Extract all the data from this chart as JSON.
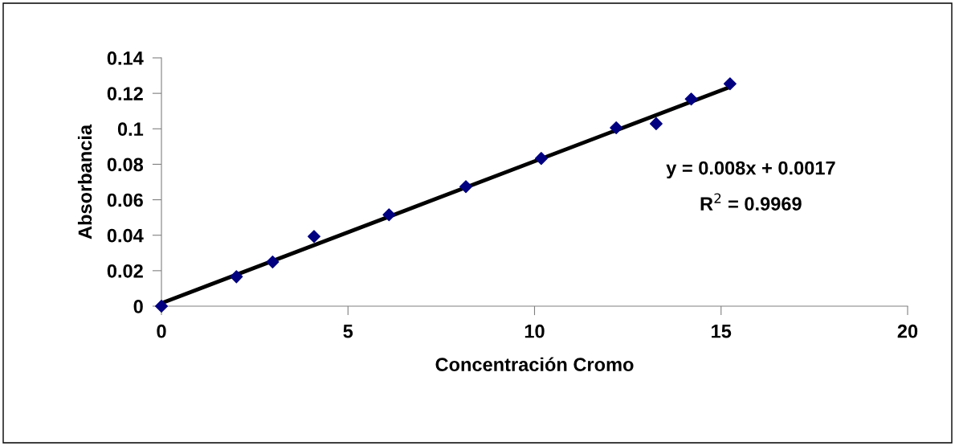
{
  "chart_data": {
    "type": "scatter",
    "xlabel": "Concentración Cromo",
    "ylabel": "Absorbancia",
    "x": [
      0,
      2.01,
      2.98,
      4.09,
      6.1,
      8.16,
      10.18,
      12.19,
      13.26,
      14.2,
      15.24
    ],
    "series": [
      {
        "color": "#000080",
        "marker": "diamond",
        "values": [
          0,
          0.0166,
          0.0249,
          0.0393,
          0.0515,
          0.0674,
          0.0833,
          0.1006,
          0.1029,
          0.1168,
          0.1254
        ]
      },
      {
        "type": "line",
        "color": "#000000",
        "x": [
          0,
          15.24
        ],
        "values": [
          0.0017,
          0.1236
        ],
        "line_style": "solid"
      }
    ],
    "xlim": [
      0,
      20
    ],
    "xticks": [
      0,
      5,
      10,
      15,
      20
    ],
    "ylim": [
      0,
      0.14
    ],
    "yticks": [
      0,
      0.02,
      0.04,
      0.06,
      0.08,
      0.1,
      0.12,
      0.14
    ],
    "grid": false,
    "legend": false,
    "annotations": [
      "y = 0.008x + 0.0017",
      "R$^{2}$ = 0.9969"
    ]
  }
}
